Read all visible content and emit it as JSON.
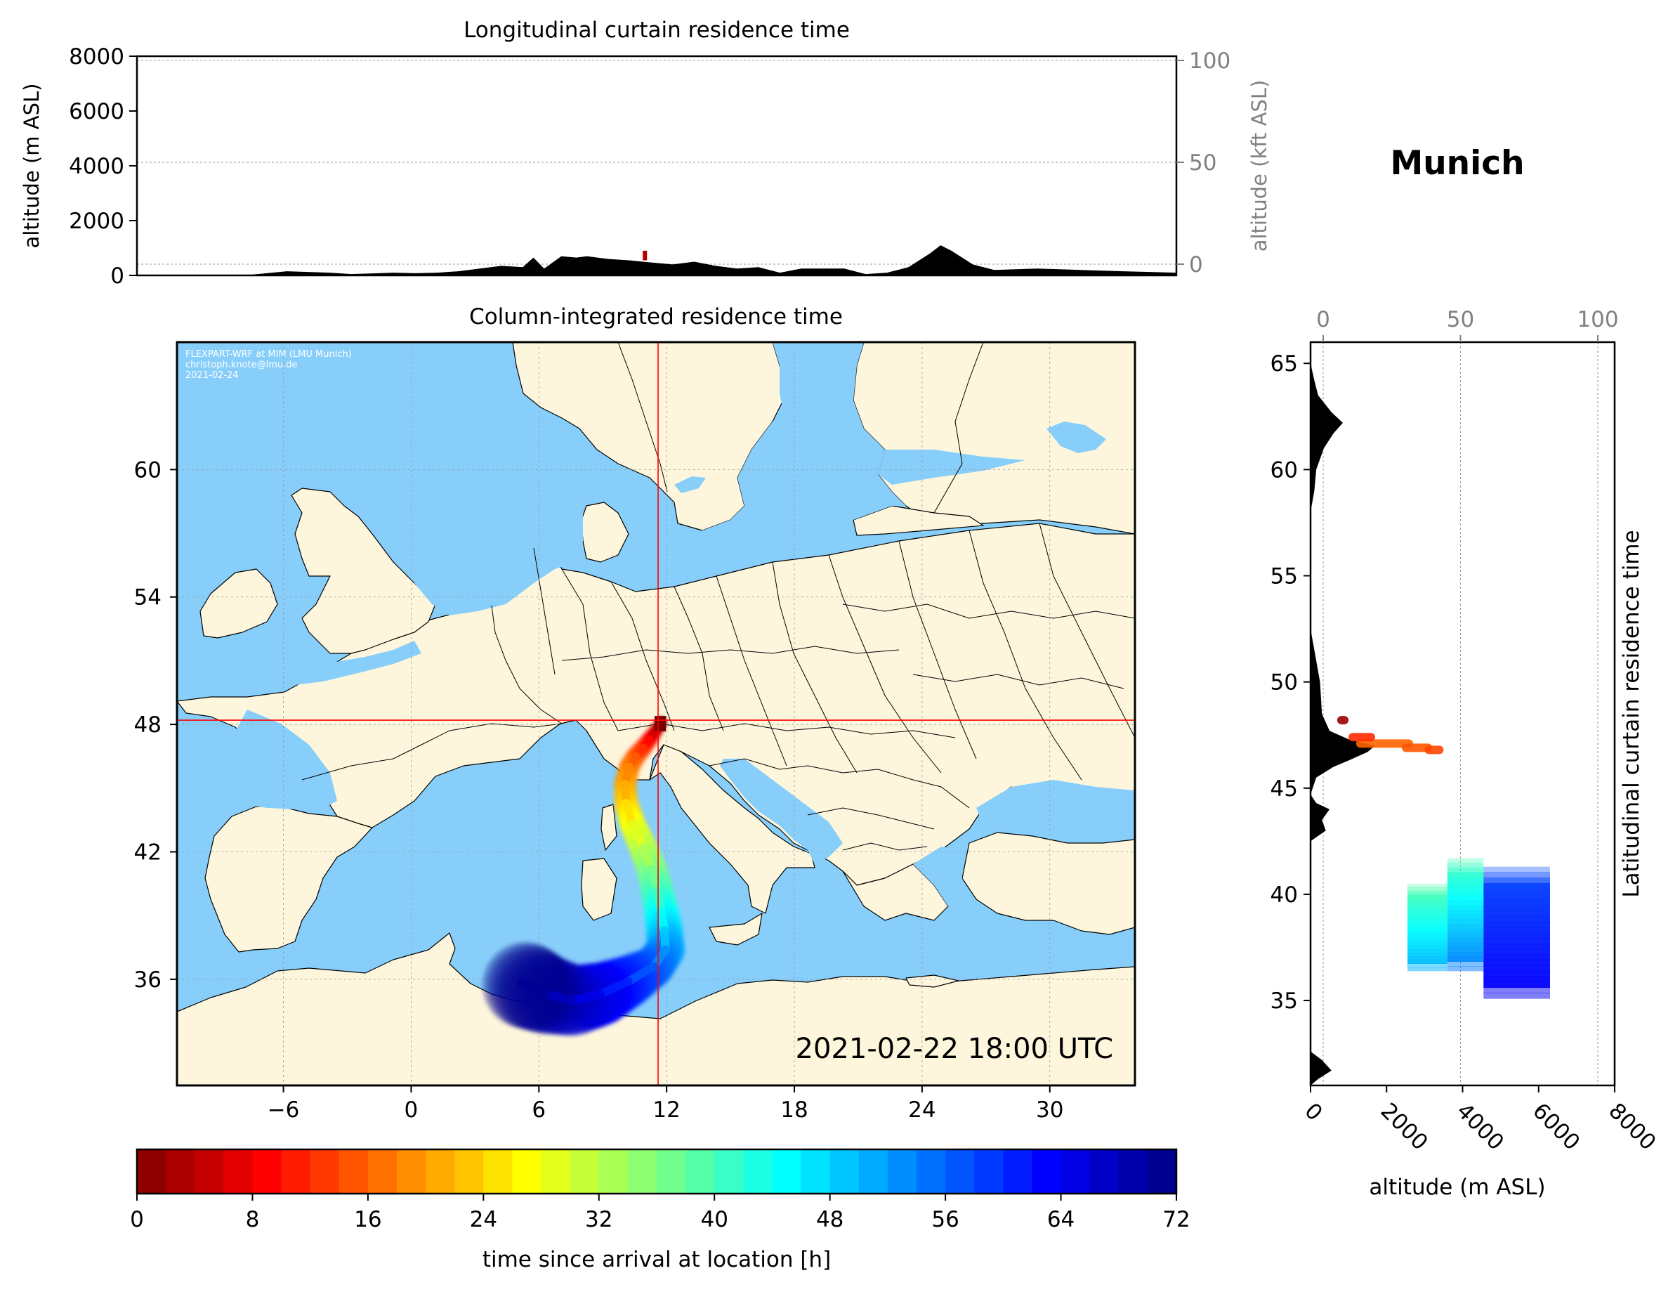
{
  "colors": {
    "ocean": "#87cefa",
    "land": "#fdf6dc",
    "crosshair": "#ff0000",
    "orography": "#000000",
    "kft_axis": "#808080"
  },
  "station": {
    "name": "Munich",
    "lon": 11.6,
    "lat": 48.2
  },
  "longitudinal_panel": {
    "title": "Longitudinal curtain residence time",
    "ylabel": "altitude (m ASL)",
    "ylabel_right": "altitude (kft ASL)",
    "ylim": [
      0,
      8000
    ],
    "yticks": [
      0,
      2000,
      4000,
      6000,
      8000
    ],
    "yticks_right": [
      0,
      50,
      100
    ],
    "orography_m": [
      [
        -12,
        0
      ],
      [
        -7,
        0
      ],
      [
        -5,
        150
      ],
      [
        -3,
        100
      ],
      [
        -2,
        50
      ],
      [
        0,
        100
      ],
      [
        1,
        80
      ],
      [
        2,
        100
      ],
      [
        3,
        150
      ],
      [
        4,
        250
      ],
      [
        5,
        350
      ],
      [
        6,
        300
      ],
      [
        6.5,
        650
      ],
      [
        7,
        250
      ],
      [
        7.8,
        700
      ],
      [
        8.5,
        650
      ],
      [
        9,
        700
      ],
      [
        10,
        600
      ],
      [
        11,
        550
      ],
      [
        11.6,
        500
      ],
      [
        13,
        400
      ],
      [
        14,
        500
      ],
      [
        15,
        350
      ],
      [
        16,
        250
      ],
      [
        17,
        300
      ],
      [
        18,
        100
      ],
      [
        19,
        250
      ],
      [
        21,
        250
      ],
      [
        22,
        50
      ],
      [
        23,
        100
      ],
      [
        24,
        300
      ],
      [
        25,
        800
      ],
      [
        25.5,
        1100
      ],
      [
        26,
        900
      ],
      [
        27,
        400
      ],
      [
        28,
        200
      ],
      [
        30,
        250
      ],
      [
        32,
        200
      ],
      [
        34,
        150
      ],
      [
        36.5,
        100
      ],
      [
        36.5,
        0
      ]
    ],
    "residence_marks": [
      {
        "lon": 11.7,
        "alt_min": 550,
        "alt_max": 900
      }
    ]
  },
  "map_panel": {
    "title": "Column-integrated residence time",
    "credit_lines": [
      "FLEXPART-WRF at MIM (LMU Munich)",
      "christoph.knote@lmu.de",
      "2021-02-24"
    ],
    "timestamp": "2021-02-22 18:00 UTC",
    "xlim": [
      -11,
      34
    ],
    "ylim": [
      31,
      66
    ],
    "xticks": [
      -6,
      0,
      6,
      12,
      18,
      24,
      30
    ],
    "yticks": [
      36,
      42,
      48,
      54,
      60
    ],
    "trajectory": [
      {
        "lon": 11.75,
        "lat": 48.1,
        "hours": 0
      },
      {
        "lon": 11.5,
        "lat": 47.7,
        "hours": 4
      },
      {
        "lon": 11.2,
        "lat": 47.3,
        "hours": 8
      },
      {
        "lon": 10.9,
        "lat": 46.9,
        "hours": 11
      },
      {
        "lon": 10.55,
        "lat": 46.5,
        "hours": 14
      },
      {
        "lon": 10.25,
        "lat": 46.0,
        "hours": 17
      },
      {
        "lon": 10.05,
        "lat": 45.2,
        "hours": 20
      },
      {
        "lon": 10.1,
        "lat": 44.3,
        "hours": 23
      },
      {
        "lon": 10.4,
        "lat": 43.3,
        "hours": 27
      },
      {
        "lon": 10.9,
        "lat": 42.2,
        "hours": 31
      },
      {
        "lon": 11.3,
        "lat": 41.2,
        "hours": 35
      },
      {
        "lon": 11.55,
        "lat": 40.2,
        "hours": 39
      },
      {
        "lon": 11.75,
        "lat": 39.2,
        "hours": 43
      },
      {
        "lon": 11.9,
        "lat": 38.3,
        "hours": 47
      },
      {
        "lon": 11.95,
        "lat": 37.4,
        "hours": 51
      },
      {
        "lon": 11.4,
        "lat": 36.6,
        "hours": 55
      },
      {
        "lon": 10.2,
        "lat": 35.9,
        "hours": 59
      },
      {
        "lon": 8.9,
        "lat": 35.3,
        "hours": 63
      },
      {
        "lon": 7.6,
        "lat": 35.0,
        "hours": 66
      },
      {
        "lon": 6.3,
        "lat": 35.3,
        "hours": 69
      },
      {
        "lon": 5.2,
        "lat": 35.8,
        "hours": 72
      }
    ]
  },
  "latitudinal_panel": {
    "ylabel": "Latitudinal curtain residence time",
    "xlabel": "altitude (m ASL)",
    "xlim": [
      0,
      8000
    ],
    "xticks": [
      0,
      2000,
      4000,
      6000,
      8000
    ],
    "xticks_top": [
      0,
      50,
      100
    ],
    "ylim": [
      31,
      66
    ],
    "yticks": [
      35,
      40,
      45,
      50,
      55,
      60,
      65
    ],
    "orography_m": [
      [
        31,
        0
      ],
      [
        31.3,
        200
      ],
      [
        31.7,
        550
      ],
      [
        32.2,
        300
      ],
      [
        32.6,
        0
      ],
      [
        42.5,
        0
      ],
      [
        43,
        400
      ],
      [
        43.5,
        300
      ],
      [
        44,
        500
      ],
      [
        44.3,
        150
      ],
      [
        44.7,
        0
      ],
      [
        45.5,
        150
      ],
      [
        46,
        600
      ],
      [
        46.3,
        1000
      ],
      [
        46.7,
        1500
      ],
      [
        47,
        1700
      ],
      [
        47.3,
        1000
      ],
      [
        47.7,
        500
      ],
      [
        48.5,
        300
      ],
      [
        50,
        250
      ],
      [
        51.5,
        100
      ],
      [
        52.5,
        0
      ],
      [
        58,
        0
      ],
      [
        59,
        100
      ],
      [
        60,
        150
      ],
      [
        61,
        350
      ],
      [
        61.7,
        600
      ],
      [
        62.2,
        850
      ],
      [
        62.7,
        550
      ],
      [
        63.5,
        200
      ],
      [
        64.2,
        100
      ],
      [
        65,
        0
      ],
      [
        66,
        0
      ]
    ],
    "residence_blocks": [
      {
        "alt_min": 2550,
        "alt_max": 3600,
        "lat_min": 36.4,
        "lat_max": 40.5,
        "hours_top": 39,
        "hours_bottom": 51
      },
      {
        "alt_min": 3600,
        "alt_max": 4550,
        "lat_min": 36.4,
        "lat_max": 41.7,
        "hours_top": 40,
        "hours_bottom": 55
      },
      {
        "alt_min": 4550,
        "alt_max": 6300,
        "lat_min": 35.1,
        "lat_max": 41.3,
        "hours_top": 58,
        "hours_bottom": 64
      }
    ],
    "residence_streaks": [
      {
        "lat": 47.1,
        "alt_min": 1200,
        "alt_max": 2700,
        "hours": 16
      },
      {
        "lat": 46.9,
        "alt_min": 2400,
        "alt_max": 3200,
        "hours": 15
      },
      {
        "lat": 46.8,
        "alt_min": 3000,
        "alt_max": 3500,
        "hours": 14
      },
      {
        "lat": 47.4,
        "alt_min": 1000,
        "alt_max": 1700,
        "hours": 12
      },
      {
        "lat": 48.2,
        "alt_min": 700,
        "alt_max": 1000,
        "hours": 2
      }
    ]
  },
  "colorbar": {
    "label": "time since arrival at location [h]",
    "range": [
      0,
      72
    ],
    "ticks": [
      0,
      8,
      16,
      24,
      32,
      40,
      48,
      56,
      64,
      72
    ],
    "step": 2,
    "colormap": "jet_reversed"
  }
}
